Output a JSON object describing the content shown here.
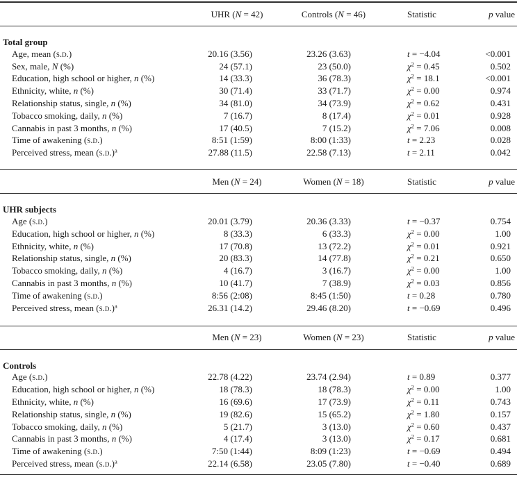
{
  "page": {
    "colors": {
      "background": "#ffffff",
      "text": "#1c1c1c",
      "rule": "#2f2f2f"
    }
  },
  "table": {
    "sections": [
      {
        "title": "Total group",
        "headers": [
          [
            {
              "t": "UHR ("
            },
            {
              "t": "N",
              "s": "i"
            },
            {
              "t": " = 42)"
            }
          ],
          [
            {
              "t": "Controls ("
            },
            {
              "t": "N",
              "s": "i"
            },
            {
              "t": " = 46)"
            }
          ],
          [
            {
              "t": "Statistic"
            }
          ],
          [
            {
              "t": "p",
              "s": "i"
            },
            {
              "t": " value"
            }
          ]
        ],
        "rows": [
          {
            "label": [
              {
                "t": "Age, mean ("
              },
              {
                "t": "s.d.",
                "s": "sc"
              },
              {
                "t": ")"
              }
            ],
            "group1": "20.16 (3.56)",
            "group2": "23.26 (3.63)",
            "statistic": [
              {
                "t": "t",
                "s": "i"
              },
              {
                "t": " = −4.04"
              }
            ],
            "p": "<0.001"
          },
          {
            "label": [
              {
                "t": "Sex, male, "
              },
              {
                "t": "N",
                "s": "i"
              },
              {
                "t": " (%)"
              }
            ],
            "group1": "24 (57.1)",
            "group2": "23 (50.0)",
            "statistic": [
              {
                "t": "χ",
                "s": "i"
              },
              {
                "t": "2",
                "s": "sup"
              },
              {
                "t": " = 0.45"
              }
            ],
            "p": "0.502"
          },
          {
            "label": [
              {
                "t": "Education, high school or higher, "
              },
              {
                "t": "n",
                "s": "i"
              },
              {
                "t": " (%)"
              }
            ],
            "group1": "14 (33.3)",
            "group2": "36 (78.3)",
            "statistic": [
              {
                "t": "χ",
                "s": "i"
              },
              {
                "t": "2",
                "s": "sup"
              },
              {
                "t": " = 18.1"
              }
            ],
            "p": "<0.001"
          },
          {
            "label": [
              {
                "t": "Ethnicity, white, "
              },
              {
                "t": "n",
                "s": "i"
              },
              {
                "t": " (%)"
              }
            ],
            "group1": "30 (71.4)",
            "group2": "33 (71.7)",
            "statistic": [
              {
                "t": "χ",
                "s": "i"
              },
              {
                "t": "2",
                "s": "sup"
              },
              {
                "t": " = 0.00"
              }
            ],
            "p": "0.974"
          },
          {
            "label": [
              {
                "t": "Relationship status, single, "
              },
              {
                "t": "n",
                "s": "i"
              },
              {
                "t": " (%)"
              }
            ],
            "group1": "34 (81.0)",
            "group2": "34 (73.9)",
            "statistic": [
              {
                "t": "χ",
                "s": "i"
              },
              {
                "t": "2",
                "s": "sup"
              },
              {
                "t": " = 0.62"
              }
            ],
            "p": "0.431"
          },
          {
            "label": [
              {
                "t": "Tobacco smoking, daily, "
              },
              {
                "t": "n",
                "s": "i"
              },
              {
                "t": " (%)"
              }
            ],
            "group1": "7 (16.7)",
            "group2": "8 (17.4)",
            "statistic": [
              {
                "t": "χ",
                "s": "i"
              },
              {
                "t": "2",
                "s": "sup"
              },
              {
                "t": " = 0.01"
              }
            ],
            "p": "0.928"
          },
          {
            "label": [
              {
                "t": "Cannabis in past 3 months, "
              },
              {
                "t": "n",
                "s": "i"
              },
              {
                "t": " (%)"
              }
            ],
            "group1": "17 (40.5)",
            "group2": "7 (15.2)",
            "statistic": [
              {
                "t": "χ",
                "s": "i"
              },
              {
                "t": "2",
                "s": "sup"
              },
              {
                "t": " = 7.06"
              }
            ],
            "p": "0.008"
          },
          {
            "label": [
              {
                "t": "Time of awakening ("
              },
              {
                "t": "s.d.",
                "s": "sc"
              },
              {
                "t": ")"
              }
            ],
            "group1": "8:51 (1:59)",
            "group2": "8:00 (1:33)",
            "statistic": [
              {
                "t": "t",
                "s": "i"
              },
              {
                "t": " = 2.23"
              }
            ],
            "p": "0.028"
          },
          {
            "label": [
              {
                "t": "Perceived stress, mean ("
              },
              {
                "t": "s.d.",
                "s": "sc"
              },
              {
                "t": ")"
              },
              {
                "t": "a",
                "s": "sup"
              }
            ],
            "group1": "27.88 (11.5)",
            "group2": "22.58 (7.13)",
            "statistic": [
              {
                "t": "t",
                "s": "i"
              },
              {
                "t": " = 2.11"
              }
            ],
            "p": "0.042"
          }
        ]
      },
      {
        "title": "UHR subjects",
        "headers": [
          [
            {
              "t": "Men ("
            },
            {
              "t": "N",
              "s": "i"
            },
            {
              "t": " = 24)"
            }
          ],
          [
            {
              "t": "Women ("
            },
            {
              "t": "N",
              "s": "i"
            },
            {
              "t": " = 18)"
            }
          ],
          [
            {
              "t": "Statistic"
            }
          ],
          [
            {
              "t": "p",
              "s": "i"
            },
            {
              "t": " value"
            }
          ]
        ],
        "rows": [
          {
            "label": [
              {
                "t": "Age ("
              },
              {
                "t": "s.d.",
                "s": "sc"
              },
              {
                "t": ")"
              }
            ],
            "group1": "20.01 (3.79)",
            "group2": "20.36 (3.33)",
            "statistic": [
              {
                "t": "t",
                "s": "i"
              },
              {
                "t": " = −0.37"
              }
            ],
            "p": "0.754"
          },
          {
            "label": [
              {
                "t": "Education, high school or higher, "
              },
              {
                "t": "n",
                "s": "i"
              },
              {
                "t": " (%)"
              }
            ],
            "group1": "8 (33.3)",
            "group2": "6 (33.3)",
            "statistic": [
              {
                "t": "χ",
                "s": "i"
              },
              {
                "t": "2",
                "s": "sup"
              },
              {
                "t": " = 0.00"
              }
            ],
            "p": "1.00"
          },
          {
            "label": [
              {
                "t": "Ethnicity, white, "
              },
              {
                "t": "n",
                "s": "i"
              },
              {
                "t": " (%)"
              }
            ],
            "group1": "17 (70.8)",
            "group2": "13 (72.2)",
            "statistic": [
              {
                "t": "χ",
                "s": "i"
              },
              {
                "t": "2",
                "s": "sup"
              },
              {
                "t": " = 0.01"
              }
            ],
            "p": "0.921"
          },
          {
            "label": [
              {
                "t": "Relationship status, single, "
              },
              {
                "t": "n",
                "s": "i"
              },
              {
                "t": " (%)"
              }
            ],
            "group1": "20 (83.3)",
            "group2": "14 (77.8)",
            "statistic": [
              {
                "t": "χ",
                "s": "i"
              },
              {
                "t": "2",
                "s": "sup"
              },
              {
                "t": " = 0.21"
              }
            ],
            "p": "0.650"
          },
          {
            "label": [
              {
                "t": "Tobacco smoking, daily, "
              },
              {
                "t": "n",
                "s": "i"
              },
              {
                "t": " (%)"
              }
            ],
            "group1": "4 (16.7)",
            "group2": "3 (16.7)",
            "statistic": [
              {
                "t": "χ",
                "s": "i"
              },
              {
                "t": "2",
                "s": "sup"
              },
              {
                "t": " = 0.00"
              }
            ],
            "p": "1.00"
          },
          {
            "label": [
              {
                "t": "Cannabis in past 3 months, "
              },
              {
                "t": "n",
                "s": "i"
              },
              {
                "t": " (%)"
              }
            ],
            "group1": "10 (41.7)",
            "group2": "7 (38.9)",
            "statistic": [
              {
                "t": "χ",
                "s": "i"
              },
              {
                "t": "2",
                "s": "sup"
              },
              {
                "t": " = 0.03"
              }
            ],
            "p": "0.856"
          },
          {
            "label": [
              {
                "t": "Time of awakening ("
              },
              {
                "t": "s.d.",
                "s": "sc"
              },
              {
                "t": ")"
              }
            ],
            "group1": "8:56 (2:08)",
            "group2": "8:45 (1:50)",
            "statistic": [
              {
                "t": "t",
                "s": "i"
              },
              {
                "t": " = 0.28"
              }
            ],
            "p": "0.780"
          },
          {
            "label": [
              {
                "t": "Perceived stress, mean ("
              },
              {
                "t": "s.d.",
                "s": "sc"
              },
              {
                "t": ")"
              },
              {
                "t": "a",
                "s": "sup"
              }
            ],
            "group1": "26.31 (14.2)",
            "group2": "29.46 (8.20)",
            "statistic": [
              {
                "t": "t",
                "s": "i"
              },
              {
                "t": " = −0.69"
              }
            ],
            "p": "0.496"
          }
        ]
      },
      {
        "title": "Controls",
        "headers": [
          [
            {
              "t": "Men ("
            },
            {
              "t": "N",
              "s": "i"
            },
            {
              "t": " = 23)"
            }
          ],
          [
            {
              "t": "Women ("
            },
            {
              "t": "N",
              "s": "i"
            },
            {
              "t": " = 23)"
            }
          ],
          [
            {
              "t": "Statistic"
            }
          ],
          [
            {
              "t": "p",
              "s": "i"
            },
            {
              "t": " value"
            }
          ]
        ],
        "rows": [
          {
            "label": [
              {
                "t": "Age ("
              },
              {
                "t": "s.d.",
                "s": "sc"
              },
              {
                "t": ")"
              }
            ],
            "group1": "22.78 (4.22)",
            "group2": "23.74 (2.94)",
            "statistic": [
              {
                "t": "t",
                "s": "i"
              },
              {
                "t": " = 0.89"
              }
            ],
            "p": "0.377"
          },
          {
            "label": [
              {
                "t": "Education, high school or higher, "
              },
              {
                "t": "n",
                "s": "i"
              },
              {
                "t": " (%)"
              }
            ],
            "group1": "18 (78.3)",
            "group2": "18 (78.3)",
            "statistic": [
              {
                "t": "χ",
                "s": "i"
              },
              {
                "t": "2",
                "s": "sup"
              },
              {
                "t": " = 0.00"
              }
            ],
            "p": "1.00"
          },
          {
            "label": [
              {
                "t": "Ethnicity, white, "
              },
              {
                "t": "n",
                "s": "i"
              },
              {
                "t": " (%)"
              }
            ],
            "group1": "16 (69.6)",
            "group2": "17 (73.9)",
            "statistic": [
              {
                "t": "χ",
                "s": "i"
              },
              {
                "t": "2",
                "s": "sup"
              },
              {
                "t": " = 0.11"
              }
            ],
            "p": "0.743"
          },
          {
            "label": [
              {
                "t": "Relationship status, single, "
              },
              {
                "t": "n",
                "s": "i"
              },
              {
                "t": " (%)"
              }
            ],
            "group1": "19 (82.6)",
            "group2": "15 (65.2)",
            "statistic": [
              {
                "t": "χ",
                "s": "i"
              },
              {
                "t": "2",
                "s": "sup"
              },
              {
                "t": " = 1.80"
              }
            ],
            "p": "0.157"
          },
          {
            "label": [
              {
                "t": "Tobacco smoking, daily, "
              },
              {
                "t": "n",
                "s": "i"
              },
              {
                "t": " (%)"
              }
            ],
            "group1": "5 (21.7)",
            "group2": "3 (13.0)",
            "statistic": [
              {
                "t": "χ",
                "s": "i"
              },
              {
                "t": "2",
                "s": "sup"
              },
              {
                "t": " = 0.60"
              }
            ],
            "p": "0.437"
          },
          {
            "label": [
              {
                "t": "Cannabis in past 3 months, "
              },
              {
                "t": "n",
                "s": "i"
              },
              {
                "t": " (%)"
              }
            ],
            "group1": "4 (17.4)",
            "group2": "3 (13.0)",
            "statistic": [
              {
                "t": "χ",
                "s": "i"
              },
              {
                "t": "2",
                "s": "sup"
              },
              {
                "t": " = 0.17"
              }
            ],
            "p": "0.681"
          },
          {
            "label": [
              {
                "t": "Time of awakening ("
              },
              {
                "t": "s.d.",
                "s": "sc"
              },
              {
                "t": ")"
              }
            ],
            "group1": "7:50 (1:44)",
            "group2": "8:09 (1:23)",
            "statistic": [
              {
                "t": "t",
                "s": "i"
              },
              {
                "t": " = −0.69"
              }
            ],
            "p": "0.494"
          },
          {
            "label": [
              {
                "t": "Perceived stress, mean ("
              },
              {
                "t": "s.d.",
                "s": "sc"
              },
              {
                "t": ")"
              },
              {
                "t": "a",
                "s": "sup"
              }
            ],
            "group1": "22.14 (6.58)",
            "group2": "23.05 (7.80)",
            "statistic": [
              {
                "t": "t",
                "s": "i"
              },
              {
                "t": " = −0.40"
              }
            ],
            "p": "0.689"
          }
        ]
      }
    ]
  }
}
